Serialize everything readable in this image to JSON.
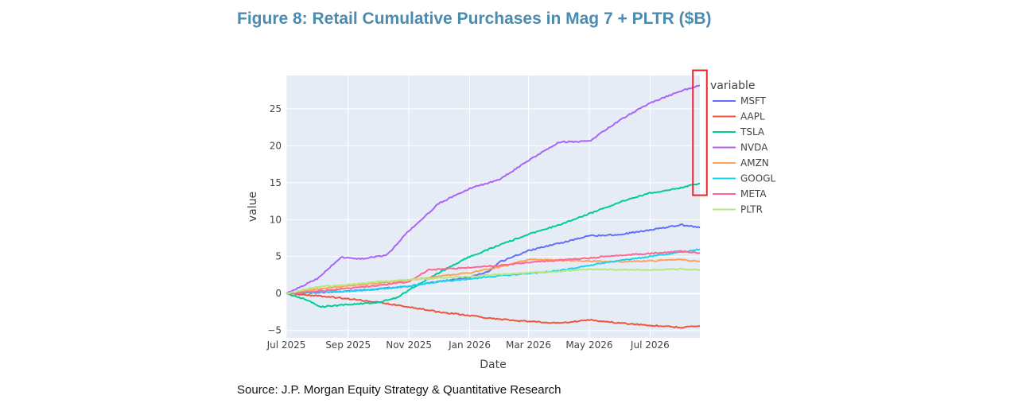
{
  "figure": {
    "title": "Figure 8: Retail Cumulative Purchases in Mag 7 + PLTR ($B)",
    "source": "Source: J.P. Morgan Equity Strategy & Quantitative Research"
  },
  "colors": {
    "title": "#4a8cb0",
    "plot_background": "#e5ecf6",
    "gridline": "#ffffff",
    "highlight_box": "#e8262b"
  },
  "chart_data": {
    "type": "line",
    "xlabel": "Date",
    "ylabel": "value",
    "legend_title": "variable",
    "legend_position": "right",
    "grid": true,
    "x_range": [
      "2025-07-01",
      "2026-08-20"
    ],
    "ylim": [
      -6,
      29.5
    ],
    "x_ticks": [
      {
        "date": "2025-07-01",
        "label": "Jul 2025"
      },
      {
        "date": "2025-09-01",
        "label": "Sep 2025"
      },
      {
        "date": "2025-11-01",
        "label": "Nov 2025"
      },
      {
        "date": "2026-01-01",
        "label": "Jan 2026"
      },
      {
        "date": "2026-03-01",
        "label": "Mar 2026"
      },
      {
        "date": "2026-05-01",
        "label": "May 2026"
      },
      {
        "date": "2026-07-01",
        "label": "Jul 2026"
      }
    ],
    "y_ticks": [
      {
        "value": -5,
        "label": "−5"
      },
      {
        "value": 0,
        "label": "0"
      },
      {
        "value": 5,
        "label": "5"
      },
      {
        "value": 10,
        "label": "10"
      },
      {
        "value": 15,
        "label": "15"
      },
      {
        "value": 20,
        "label": "20"
      },
      {
        "value": 25,
        "label": "25"
      }
    ],
    "highlight": {
      "x_start": "2026-08-13",
      "x_end": "2026-08-27",
      "y_start": 13.3,
      "y_end": 30.2
    },
    "series": [
      {
        "name": "MSFT",
        "color": "#636efa",
        "points": [
          [
            "2025-07-01",
            0
          ],
          [
            "2025-08-01",
            0.1
          ],
          [
            "2025-09-01",
            0.3
          ],
          [
            "2025-10-01",
            0.6
          ],
          [
            "2025-11-01",
            1.0
          ],
          [
            "2025-12-01",
            1.6
          ],
          [
            "2026-01-01",
            2.2
          ],
          [
            "2026-01-20",
            3.0
          ],
          [
            "2026-02-01",
            4.3
          ],
          [
            "2026-03-01",
            5.8
          ],
          [
            "2026-04-01",
            6.8
          ],
          [
            "2026-05-01",
            7.8
          ],
          [
            "2026-06-01",
            8.0
          ],
          [
            "2026-07-01",
            8.6
          ],
          [
            "2026-08-01",
            9.3
          ],
          [
            "2026-08-20",
            8.9
          ]
        ]
      },
      {
        "name": "AAPL",
        "color": "#ef553b",
        "points": [
          [
            "2025-07-01",
            0
          ],
          [
            "2025-08-01",
            -0.3
          ],
          [
            "2025-09-01",
            -0.7
          ],
          [
            "2025-10-01",
            -1.2
          ],
          [
            "2025-11-01",
            -1.8
          ],
          [
            "2025-12-01",
            -2.5
          ],
          [
            "2026-01-01",
            -3.0
          ],
          [
            "2026-02-01",
            -3.5
          ],
          [
            "2026-03-01",
            -3.8
          ],
          [
            "2026-04-01",
            -4.0
          ],
          [
            "2026-05-01",
            -3.6
          ],
          [
            "2026-06-01",
            -4.0
          ],
          [
            "2026-07-01",
            -4.3
          ],
          [
            "2026-08-01",
            -4.6
          ],
          [
            "2026-08-20",
            -4.4
          ]
        ]
      },
      {
        "name": "TSLA",
        "color": "#00cc96",
        "points": [
          [
            "2025-07-01",
            0
          ],
          [
            "2025-07-20",
            -0.8
          ],
          [
            "2025-08-05",
            -1.8
          ],
          [
            "2025-09-01",
            -1.5
          ],
          [
            "2025-10-01",
            -1.2
          ],
          [
            "2025-10-20",
            -0.6
          ],
          [
            "2025-11-01",
            0.5
          ],
          [
            "2025-12-01",
            2.8
          ],
          [
            "2026-01-01",
            5.0
          ],
          [
            "2026-02-01",
            6.6
          ],
          [
            "2026-03-01",
            8.0
          ],
          [
            "2026-04-01",
            9.3
          ],
          [
            "2026-05-01",
            10.8
          ],
          [
            "2026-06-01",
            12.4
          ],
          [
            "2026-07-01",
            13.6
          ],
          [
            "2026-08-01",
            14.3
          ],
          [
            "2026-08-20",
            14.9
          ]
        ]
      },
      {
        "name": "NVDA",
        "color": "#ab63fa",
        "points": [
          [
            "2025-07-01",
            0
          ],
          [
            "2025-08-01",
            2.0
          ],
          [
            "2025-08-25",
            4.9
          ],
          [
            "2025-09-15",
            4.7
          ],
          [
            "2025-10-10",
            5.2
          ],
          [
            "2025-11-01",
            8.5
          ],
          [
            "2025-11-20",
            10.8
          ],
          [
            "2025-12-01",
            12.2
          ],
          [
            "2026-01-01",
            14.2
          ],
          [
            "2026-02-01",
            15.5
          ],
          [
            "2026-03-01",
            18.0
          ],
          [
            "2026-04-01",
            20.5
          ],
          [
            "2026-05-01",
            20.6
          ],
          [
            "2026-06-01",
            23.5
          ],
          [
            "2026-07-01",
            25.8
          ],
          [
            "2026-08-01",
            27.4
          ],
          [
            "2026-08-20",
            28.2
          ]
        ]
      },
      {
        "name": "AMZN",
        "color": "#ffa15a",
        "points": [
          [
            "2025-07-01",
            0
          ],
          [
            "2025-08-01",
            0.6
          ],
          [
            "2025-09-01",
            1.0
          ],
          [
            "2025-10-01",
            1.4
          ],
          [
            "2025-11-01",
            1.8
          ],
          [
            "2025-12-01",
            2.3
          ],
          [
            "2026-01-01",
            2.8
          ],
          [
            "2026-02-01",
            3.6
          ],
          [
            "2026-03-01",
            4.6
          ],
          [
            "2026-04-01",
            4.5
          ],
          [
            "2026-05-01",
            4.4
          ],
          [
            "2026-06-01",
            4.3
          ],
          [
            "2026-07-01",
            4.4
          ],
          [
            "2026-08-01",
            4.6
          ],
          [
            "2026-08-20",
            4.3
          ]
        ]
      },
      {
        "name": "GOOGL",
        "color": "#19d3f3",
        "points": [
          [
            "2025-07-01",
            0
          ],
          [
            "2025-08-01",
            0.2
          ],
          [
            "2025-09-01",
            0.3
          ],
          [
            "2025-10-01",
            0.6
          ],
          [
            "2025-11-01",
            1.0
          ],
          [
            "2025-12-01",
            1.6
          ],
          [
            "2026-01-01",
            2.0
          ],
          [
            "2026-02-01",
            2.4
          ],
          [
            "2026-03-01",
            2.7
          ],
          [
            "2026-04-01",
            3.1
          ],
          [
            "2026-05-01",
            3.8
          ],
          [
            "2026-06-01",
            4.5
          ],
          [
            "2026-07-01",
            5.0
          ],
          [
            "2026-08-01",
            5.6
          ],
          [
            "2026-08-20",
            6.0
          ]
        ]
      },
      {
        "name": "META",
        "color": "#ff6692",
        "points": [
          [
            "2025-07-01",
            0
          ],
          [
            "2025-08-01",
            0.3
          ],
          [
            "2025-09-01",
            0.7
          ],
          [
            "2025-10-01",
            1.1
          ],
          [
            "2025-11-01",
            1.6
          ],
          [
            "2025-11-20",
            3.2
          ],
          [
            "2026-01-01",
            3.5
          ],
          [
            "2026-02-01",
            3.8
          ],
          [
            "2026-03-01",
            4.2
          ],
          [
            "2026-04-01",
            4.5
          ],
          [
            "2026-05-01",
            4.8
          ],
          [
            "2026-06-01",
            5.2
          ],
          [
            "2026-07-01",
            5.4
          ],
          [
            "2026-08-01",
            5.7
          ],
          [
            "2026-08-20",
            5.5
          ]
        ]
      },
      {
        "name": "PLTR",
        "color": "#b6e880",
        "points": [
          [
            "2025-07-01",
            0
          ],
          [
            "2025-08-01",
            0.9
          ],
          [
            "2025-09-01",
            1.2
          ],
          [
            "2025-10-01",
            1.6
          ],
          [
            "2025-11-01",
            1.9
          ],
          [
            "2025-12-01",
            2.1
          ],
          [
            "2026-01-01",
            2.3
          ],
          [
            "2026-02-01",
            2.6
          ],
          [
            "2026-03-01",
            2.8
          ],
          [
            "2026-04-01",
            3.0
          ],
          [
            "2026-05-01",
            3.3
          ],
          [
            "2026-06-01",
            3.2
          ],
          [
            "2026-07-01",
            3.2
          ],
          [
            "2026-08-01",
            3.3
          ],
          [
            "2026-08-20",
            3.2
          ]
        ]
      }
    ]
  }
}
